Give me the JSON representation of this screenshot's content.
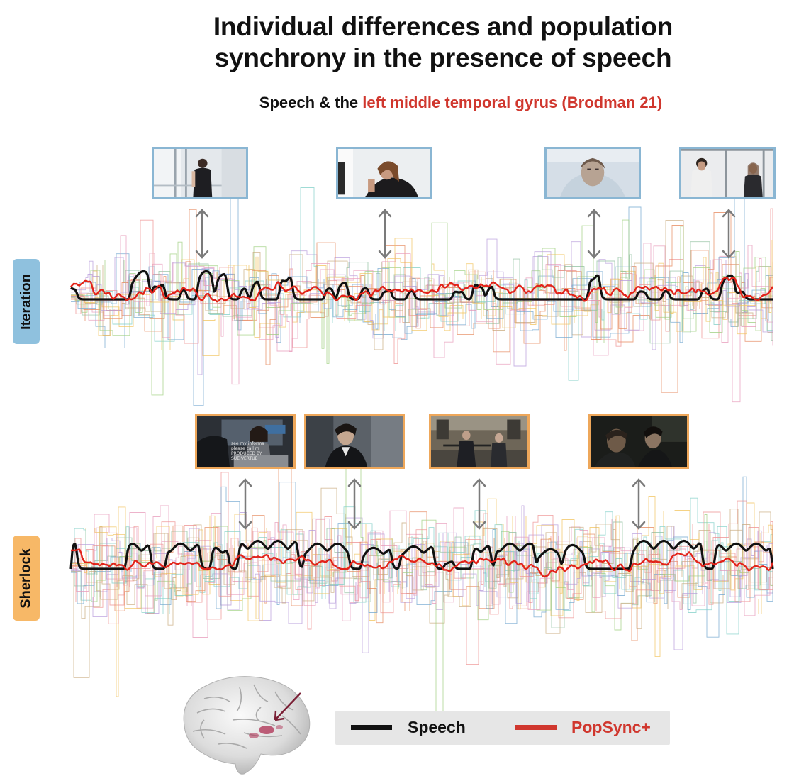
{
  "title_line1": "Individual differences and population",
  "title_line2": "synchrony in the presence of speech",
  "subtitle_prefix": "Speech & the ",
  "subtitle_region": "left middle temporal gyrus (Brodman 21)",
  "colors": {
    "accent_red": "#d0372e",
    "speech_black": "#111111",
    "iteration_tag": "#8fc1de",
    "sherlock_tag": "#f7b867",
    "legend_bg": "#e6e6e6"
  },
  "panels": [
    {
      "label": "Iteration",
      "frame_style": "blue"
    },
    {
      "label": "Sherlock",
      "frame_style": "orange"
    }
  ],
  "frame_captions": {
    "sherlock_1": [
      "see my informa",
      "please call m",
      "PRODUCED BY",
      "SUE VERTUE"
    ]
  },
  "legend": {
    "speech_label": "Speech",
    "popsync_label": "PopSync+"
  },
  "icons": [
    "brain-icon",
    "arrow-icon",
    "double-arrow-icon"
  ]
}
